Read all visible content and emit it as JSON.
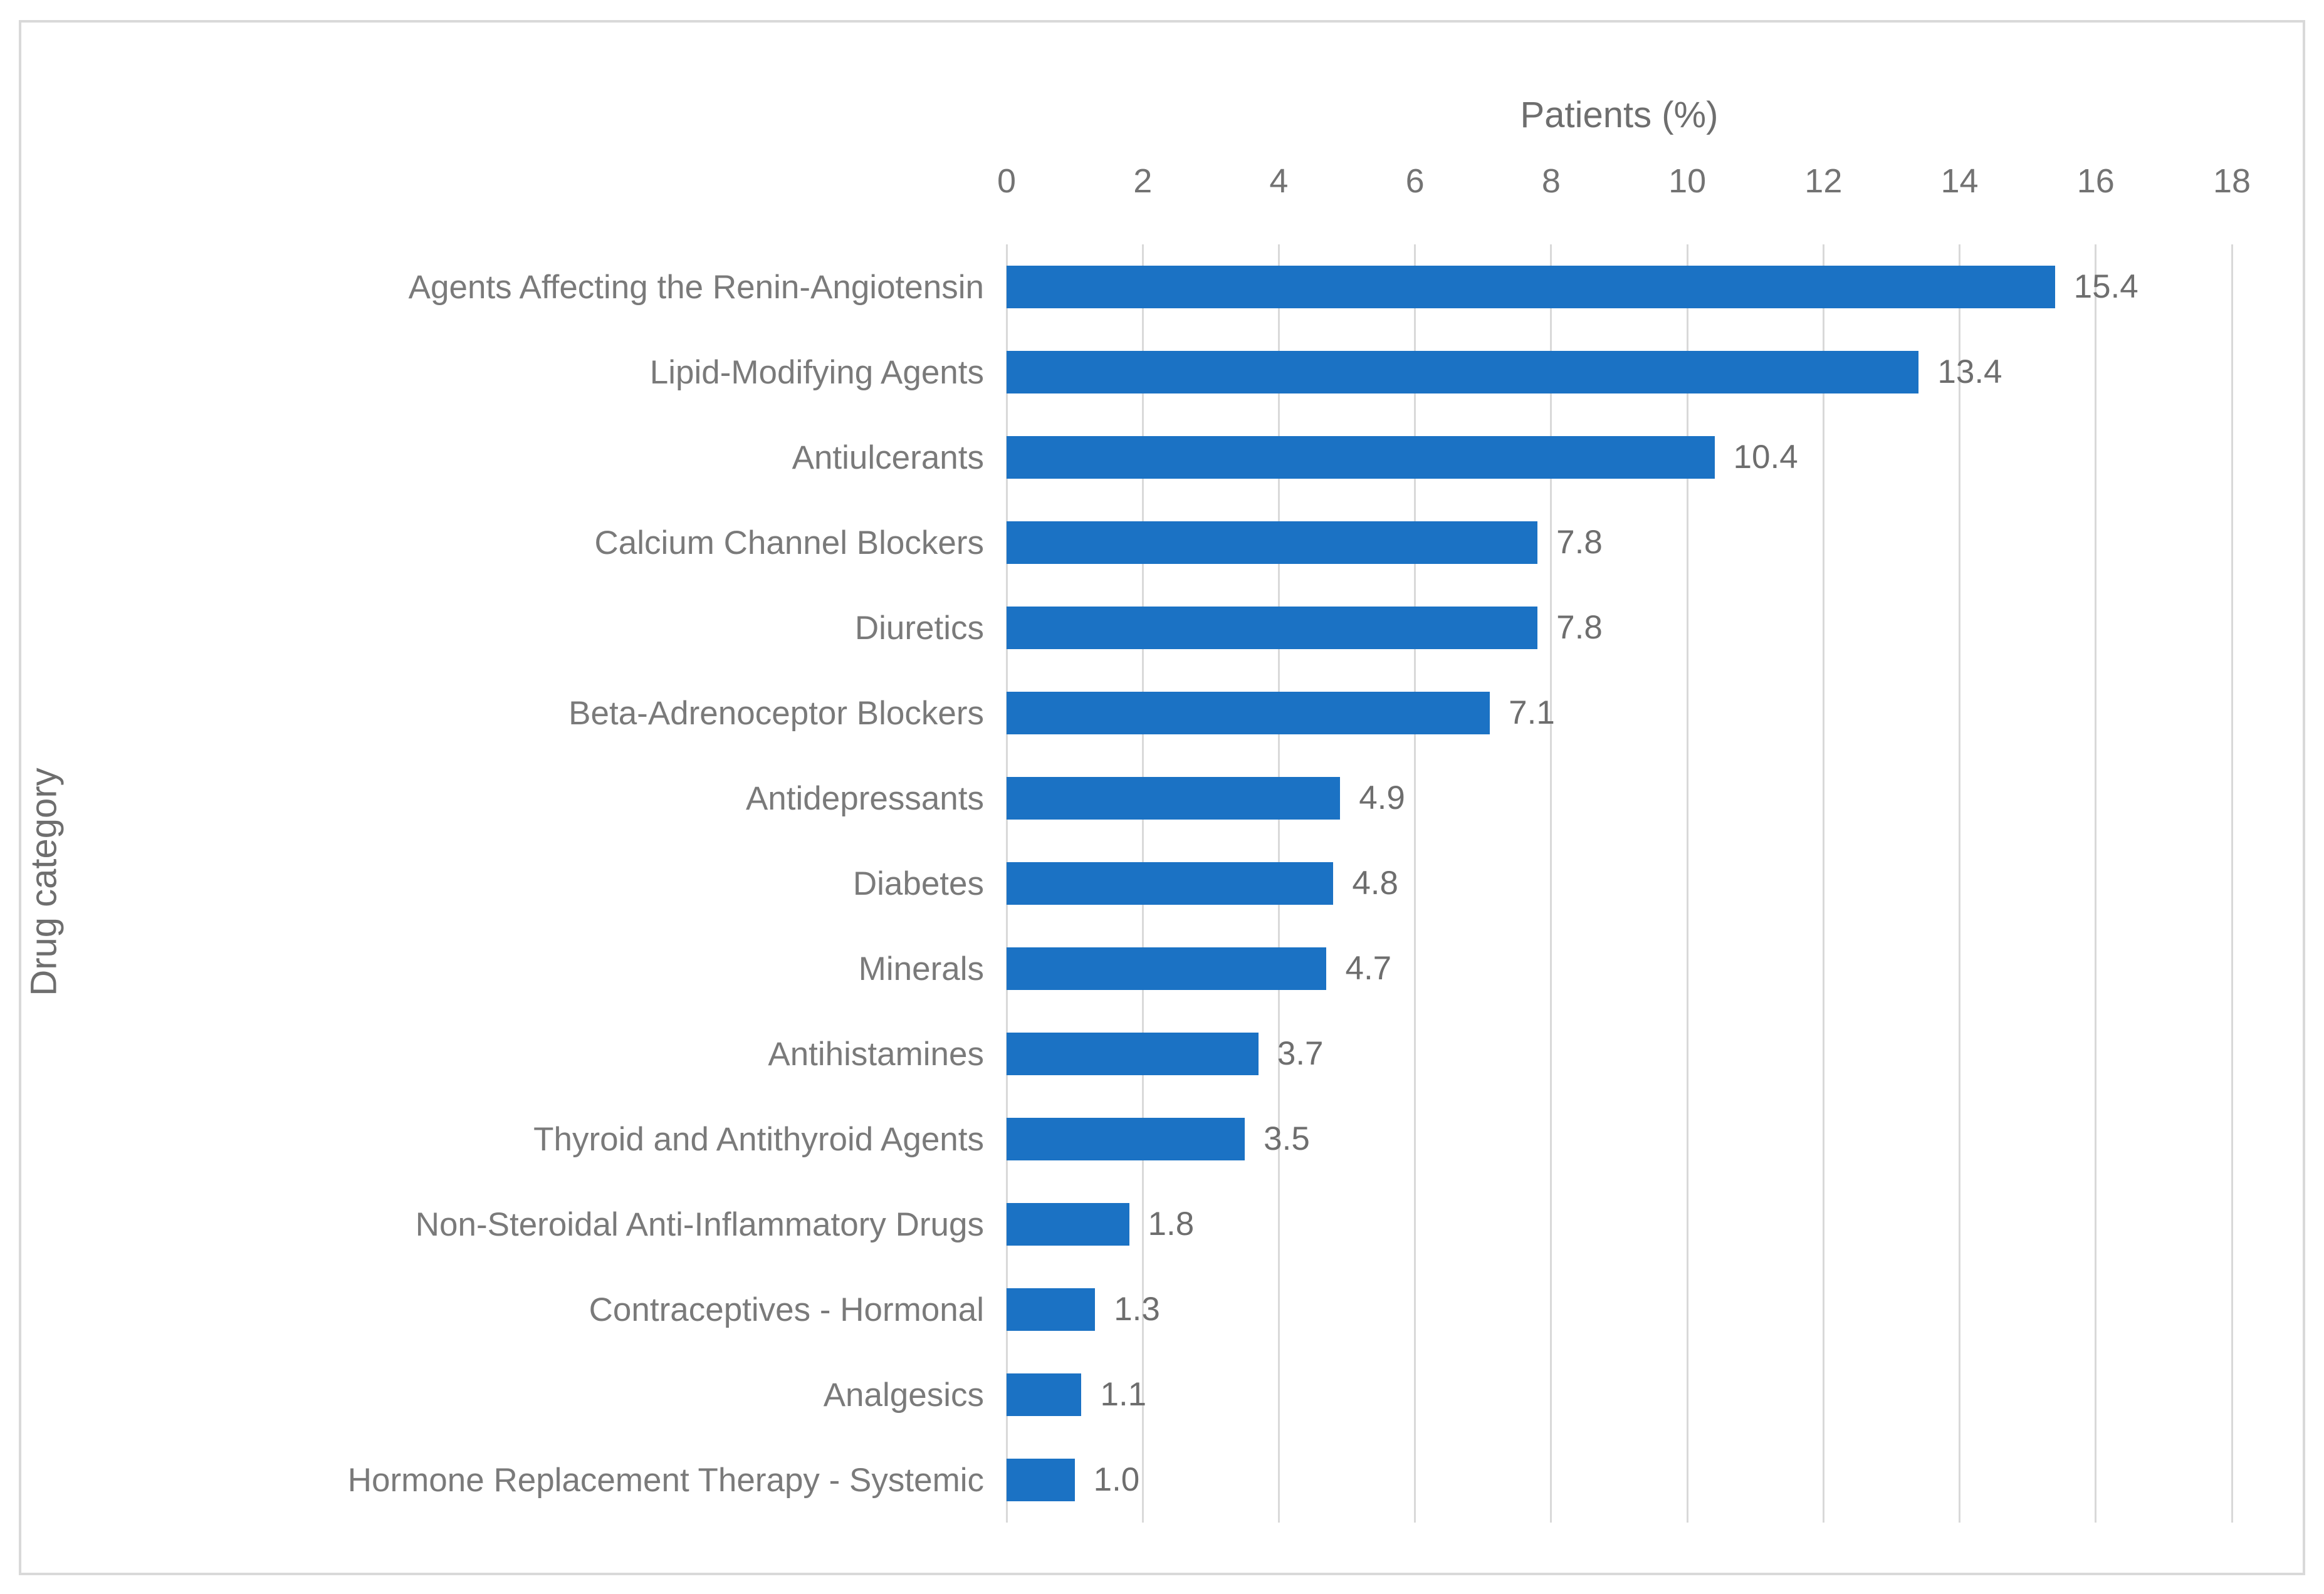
{
  "chart_data": {
    "type": "bar",
    "orientation": "horizontal",
    "title": "Patients (%)",
    "xlabel": "Patients (%)",
    "ylabel": "Drug category",
    "categories": [
      "Agents Affecting the Renin-Angiotensin",
      "Lipid-Modifying Agents",
      "Antiulcerants",
      "Calcium Channel Blockers",
      "Diuretics",
      "Beta-Adrenoceptor Blockers",
      "Antidepressants",
      "Diabetes",
      "Minerals",
      "Antihistamines",
      "Thyroid and Antithyroid Agents",
      "Non-Steroidal Anti-Inflammatory Drugs",
      "Contraceptives - Hormonal",
      "Analgesics",
      "Hormone Replacement Therapy - Systemic"
    ],
    "values": [
      15.4,
      13.4,
      10.4,
      7.8,
      7.8,
      7.1,
      4.9,
      4.8,
      4.7,
      3.7,
      3.5,
      1.8,
      1.3,
      1.1,
      1.0
    ],
    "xlim": [
      0,
      18
    ],
    "xticks": [
      0,
      2,
      4,
      6,
      8,
      10,
      12,
      14,
      16,
      18
    ],
    "grid": "vertical",
    "legend": "none",
    "data_labels": "outside-end, one decimal",
    "colors": {
      "bar": "#1B72C4",
      "gridline": "#D9D9D9",
      "frame_border": "#D9D9D9",
      "text": "#6E6E6E",
      "background": "#FFFFFF"
    }
  }
}
